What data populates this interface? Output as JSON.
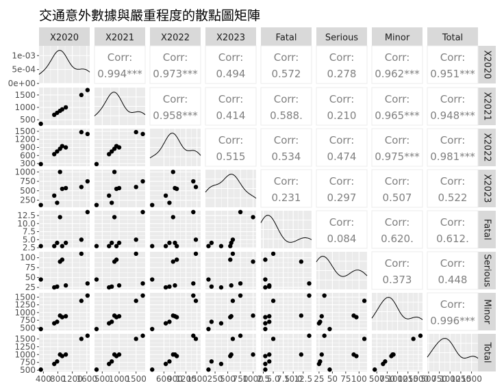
{
  "chart_data": {
    "type": "scatter",
    "title": "交通意外數據與嚴重程度的散點圖矩陣",
    "variables": [
      "X2020",
      "X2021",
      "X2022",
      "X2023",
      "Fatal",
      "Serious",
      "Minor",
      "Total"
    ],
    "corr_prefix": "Corr:",
    "correlations": [
      [
        "",
        "0.994***",
        "0.973***",
        "0.494",
        "0.572",
        "0.278",
        "0.962***",
        "0.951***"
      ],
      [
        "",
        "",
        "0.958***",
        "0.414",
        "0.588.",
        "0.210",
        "0.965***",
        "0.948***"
      ],
      [
        "",
        "",
        "",
        "0.515",
        "0.534",
        "0.474",
        "0.975***",
        "0.981***"
      ],
      [
        "",
        "",
        "",
        "",
        "0.231",
        "0.297",
        "0.507",
        "0.522"
      ],
      [
        "",
        "",
        "",
        "",
        "",
        "0.084",
        "0.620.",
        "0.612."
      ],
      [
        "",
        "",
        "",
        "",
        "",
        "",
        "0.373",
        "0.448"
      ],
      [
        "",
        "",
        "",
        "",
        "",
        "",
        "",
        "0.996***"
      ]
    ],
    "observations": [
      {
        "X2020": 330,
        "X2021": 330,
        "X2022": 280,
        "X2023": 120,
        "Fatal": 3,
        "Serious": 45,
        "Minor": 450,
        "Total": 520
      },
      {
        "X2020": 700,
        "X2021": 700,
        "X2022": 650,
        "X2023": 370,
        "Fatal": 3,
        "Serious": 25,
        "Minor": 650,
        "Total": 700
      },
      {
        "X2020": 780,
        "X2021": 780,
        "X2022": 750,
        "X2023": 180,
        "Fatal": 4,
        "Serious": 27,
        "Minor": 700,
        "Total": 780
      },
      {
        "X2020": 860,
        "X2021": 860,
        "X2022": 850,
        "X2023": 1000,
        "Fatal": 12,
        "Serious": 90,
        "Minor": 900,
        "Total": 1000
      },
      {
        "X2020": 920,
        "X2021": 920,
        "X2022": 950,
        "X2023": 550,
        "Fatal": 3,
        "Serious": 95,
        "Minor": 850,
        "Total": 950
      },
      {
        "X2020": 1020,
        "X2021": 1000,
        "X2022": 900,
        "X2023": 570,
        "Fatal": 4,
        "Serious": 30,
        "Minor": 880,
        "Total": 1000
      },
      {
        "X2020": 1450,
        "X2021": 1500,
        "X2022": 1470,
        "X2023": 600,
        "Fatal": 5,
        "Serious": 110,
        "Minor": 1380,
        "Total": 1500
      },
      {
        "X2020": 1620,
        "X2021": 1700,
        "X2022": 1400,
        "X2023": 750,
        "Fatal": 14,
        "Serious": 35,
        "Minor": 1550,
        "Total": 1600
      }
    ],
    "diagonal": "density",
    "x_ranges": {
      "X2020": [
        280,
        1680
      ],
      "X2021": [
        270,
        1770
      ],
      "X2022": [
        220,
        1600
      ],
      "X2023": [
        60,
        1060
      ],
      "Fatal": [
        1.9,
        14.6
      ],
      "Serious": [
        20,
        115
      ],
      "Minor": [
        380,
        1600
      ],
      "Total": [
        470,
        1650
      ]
    },
    "y_ranges": {
      "X2021": [
        280,
        1800
      ],
      "X2022": [
        200,
        1600
      ],
      "X2023": [
        60,
        1060
      ],
      "Fatal": [
        2.3,
        14
      ],
      "Serious": [
        20,
        115
      ],
      "Minor": [
        420,
        1640
      ],
      "Total": [
        460,
        1660
      ]
    },
    "x_ticks": {
      "X2020": [
        "400",
        "800",
        "1200",
        "1600"
      ],
      "X2021": [
        "500",
        "1000",
        "1500"
      ],
      "X2022": [
        "600",
        "900",
        "1200",
        "1500"
      ],
      "X2023": [
        "250",
        "500",
        "750",
        "1000"
      ],
      "Fatal": [
        "2.5",
        "5.0",
        "7.5",
        "10.0",
        "12.5"
      ],
      "Serious": [
        "25",
        "50",
        "75",
        "100"
      ],
      "Minor": [
        "500",
        "750",
        "1000",
        "1250",
        "1500"
      ],
      "Total": [
        "500",
        "750",
        "1000",
        "1250",
        "1500"
      ]
    },
    "x_tick_values": {
      "X2020": [
        400,
        800,
        1200,
        1600
      ],
      "X2021": [
        500,
        1000,
        1500
      ],
      "X2022": [
        600,
        900,
        1200,
        1500
      ],
      "X2023": [
        250,
        500,
        750,
        1000
      ],
      "Fatal": [
        2.5,
        5.0,
        7.5,
        10.0,
        12.5
      ],
      "Serious": [
        25,
        50,
        75,
        100
      ],
      "Minor": [
        500,
        750,
        1000,
        1250,
        1500
      ],
      "Total": [
        500,
        750,
        1000,
        1250,
        1500
      ]
    },
    "y_ticks": {
      "X2020": [
        "1e-03",
        "5e-04",
        "0e+00"
      ],
      "X2021": [
        "1500",
        "1000",
        "500"
      ],
      "X2022": [
        "1500",
        "1200",
        "900",
        "600",
        "300"
      ],
      "X2023": [
        "1000",
        "750",
        "500",
        "250"
      ],
      "Fatal": [
        "12.5",
        "10.0",
        "7.5",
        "5.0",
        "2.5"
      ],
      "Serious": [
        "100",
        "75",
        "50",
        "25"
      ],
      "Minor": [
        "1500",
        "1250",
        "1000",
        "750",
        "500"
      ],
      "Total": [
        "1500",
        "1250",
        "1000",
        "750",
        "500"
      ]
    },
    "y_tick_values": {
      "X2020": [
        0.001,
        0.0005,
        0
      ],
      "X2021": [
        1500,
        1000,
        500
      ],
      "X2022": [
        1500,
        1200,
        900,
        600,
        300
      ],
      "X2023": [
        1000,
        750,
        500,
        250
      ],
      "Fatal": [
        12.5,
        10.0,
        7.5,
        5.0,
        2.5
      ],
      "Serious": [
        100,
        75,
        50,
        25
      ],
      "Minor": [
        1500,
        1250,
        1000,
        750,
        500
      ],
      "Total": [
        1500,
        1250,
        1000,
        750,
        500
      ]
    },
    "density_ylim": [
      0,
      0.00135
    ],
    "colors": {
      "panel_bg": "#ebebeb",
      "grid": "#ffffff",
      "strip_bg": "#d9d9d9",
      "point": "#000000",
      "corr_text": "#7f7f7f",
      "text": "#4d4d4d"
    }
  }
}
